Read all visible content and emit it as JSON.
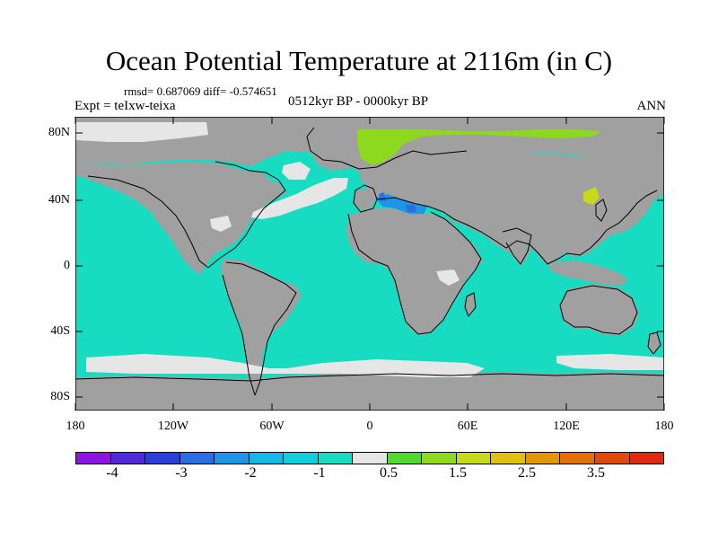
{
  "title": "Ocean Potential Temperature at 2116m (in C)",
  "stats": "rmsd= 0.687069 diff= -0.574651",
  "experiment": "Expt = teIxw-teixa",
  "period": "0512kyr BP - 0000kyr BP",
  "season": "ANN",
  "lat_labels": [
    "80N",
    "40N",
    "0",
    "40S",
    "80S"
  ],
  "lon_labels": [
    "180",
    "120W",
    "60W",
    "0",
    "60E",
    "120E",
    "180"
  ],
  "colorbar": {
    "colors": [
      "#8a16e0",
      "#5228d8",
      "#2a3ed9",
      "#2a6fe0",
      "#1f95e6",
      "#16b8e6",
      "#10d0da",
      "#18dcc2",
      "#e6e6e6",
      "#52d830",
      "#8ed820",
      "#c8d81a",
      "#e0c010",
      "#e09808",
      "#e07008",
      "#e04a08",
      "#e02a10"
    ],
    "labels": [
      "-4",
      "-3",
      "-2",
      "-1",
      "0.5",
      "1.5",
      "2.5",
      "3.5"
    ]
  },
  "map_colors": {
    "land": "#a0a0a0",
    "ocean": "#18dcc2",
    "neutral": "#e6e6e6",
    "green": "#8ed820",
    "blue": "#1f95e6",
    "yellow": "#c8d81a"
  }
}
